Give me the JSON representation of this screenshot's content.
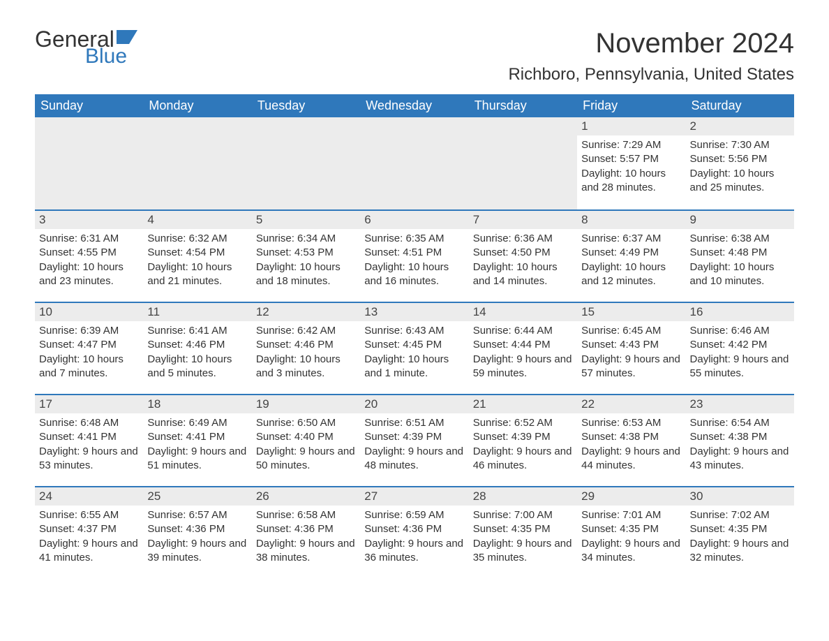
{
  "logo": {
    "word1": "General",
    "word2": "Blue",
    "flag_color": "#2f78bb"
  },
  "title": "November 2024",
  "location": "Richboro, Pennsylvania, United States",
  "colors": {
    "header_bg": "#2f78bb",
    "header_text": "#ffffff",
    "daynum_bg": "#ececec",
    "border_top": "#2f78bb",
    "body_text": "#333333",
    "page_bg": "#ffffff"
  },
  "typography": {
    "title_fontsize": 40,
    "location_fontsize": 24,
    "dayheader_fontsize": 18,
    "cell_fontsize": 15
  },
  "day_headers": [
    "Sunday",
    "Monday",
    "Tuesday",
    "Wednesday",
    "Thursday",
    "Friday",
    "Saturday"
  ],
  "labels": {
    "sunrise": "Sunrise",
    "sunset": "Sunset",
    "daylight": "Daylight"
  },
  "weeks": [
    [
      null,
      null,
      null,
      null,
      null,
      {
        "day": "1",
        "sunrise": "7:29 AM",
        "sunset": "5:57 PM",
        "daylight": "10 hours and 28 minutes."
      },
      {
        "day": "2",
        "sunrise": "7:30 AM",
        "sunset": "5:56 PM",
        "daylight": "10 hours and 25 minutes."
      }
    ],
    [
      {
        "day": "3",
        "sunrise": "6:31 AM",
        "sunset": "4:55 PM",
        "daylight": "10 hours and 23 minutes."
      },
      {
        "day": "4",
        "sunrise": "6:32 AM",
        "sunset": "4:54 PM",
        "daylight": "10 hours and 21 minutes."
      },
      {
        "day": "5",
        "sunrise": "6:34 AM",
        "sunset": "4:53 PM",
        "daylight": "10 hours and 18 minutes."
      },
      {
        "day": "6",
        "sunrise": "6:35 AM",
        "sunset": "4:51 PM",
        "daylight": "10 hours and 16 minutes."
      },
      {
        "day": "7",
        "sunrise": "6:36 AM",
        "sunset": "4:50 PM",
        "daylight": "10 hours and 14 minutes."
      },
      {
        "day": "8",
        "sunrise": "6:37 AM",
        "sunset": "4:49 PM",
        "daylight": "10 hours and 12 minutes."
      },
      {
        "day": "9",
        "sunrise": "6:38 AM",
        "sunset": "4:48 PM",
        "daylight": "10 hours and 10 minutes."
      }
    ],
    [
      {
        "day": "10",
        "sunrise": "6:39 AM",
        "sunset": "4:47 PM",
        "daylight": "10 hours and 7 minutes."
      },
      {
        "day": "11",
        "sunrise": "6:41 AM",
        "sunset": "4:46 PM",
        "daylight": "10 hours and 5 minutes."
      },
      {
        "day": "12",
        "sunrise": "6:42 AM",
        "sunset": "4:46 PM",
        "daylight": "10 hours and 3 minutes."
      },
      {
        "day": "13",
        "sunrise": "6:43 AM",
        "sunset": "4:45 PM",
        "daylight": "10 hours and 1 minute."
      },
      {
        "day": "14",
        "sunrise": "6:44 AM",
        "sunset": "4:44 PM",
        "daylight": "9 hours and 59 minutes."
      },
      {
        "day": "15",
        "sunrise": "6:45 AM",
        "sunset": "4:43 PM",
        "daylight": "9 hours and 57 minutes."
      },
      {
        "day": "16",
        "sunrise": "6:46 AM",
        "sunset": "4:42 PM",
        "daylight": "9 hours and 55 minutes."
      }
    ],
    [
      {
        "day": "17",
        "sunrise": "6:48 AM",
        "sunset": "4:41 PM",
        "daylight": "9 hours and 53 minutes."
      },
      {
        "day": "18",
        "sunrise": "6:49 AM",
        "sunset": "4:41 PM",
        "daylight": "9 hours and 51 minutes."
      },
      {
        "day": "19",
        "sunrise": "6:50 AM",
        "sunset": "4:40 PM",
        "daylight": "9 hours and 50 minutes."
      },
      {
        "day": "20",
        "sunrise": "6:51 AM",
        "sunset": "4:39 PM",
        "daylight": "9 hours and 48 minutes."
      },
      {
        "day": "21",
        "sunrise": "6:52 AM",
        "sunset": "4:39 PM",
        "daylight": "9 hours and 46 minutes."
      },
      {
        "day": "22",
        "sunrise": "6:53 AM",
        "sunset": "4:38 PM",
        "daylight": "9 hours and 44 minutes."
      },
      {
        "day": "23",
        "sunrise": "6:54 AM",
        "sunset": "4:38 PM",
        "daylight": "9 hours and 43 minutes."
      }
    ],
    [
      {
        "day": "24",
        "sunrise": "6:55 AM",
        "sunset": "4:37 PM",
        "daylight": "9 hours and 41 minutes."
      },
      {
        "day": "25",
        "sunrise": "6:57 AM",
        "sunset": "4:36 PM",
        "daylight": "9 hours and 39 minutes."
      },
      {
        "day": "26",
        "sunrise": "6:58 AM",
        "sunset": "4:36 PM",
        "daylight": "9 hours and 38 minutes."
      },
      {
        "day": "27",
        "sunrise": "6:59 AM",
        "sunset": "4:36 PM",
        "daylight": "9 hours and 36 minutes."
      },
      {
        "day": "28",
        "sunrise": "7:00 AM",
        "sunset": "4:35 PM",
        "daylight": "9 hours and 35 minutes."
      },
      {
        "day": "29",
        "sunrise": "7:01 AM",
        "sunset": "4:35 PM",
        "daylight": "9 hours and 34 minutes."
      },
      {
        "day": "30",
        "sunrise": "7:02 AM",
        "sunset": "4:35 PM",
        "daylight": "9 hours and 32 minutes."
      }
    ]
  ]
}
